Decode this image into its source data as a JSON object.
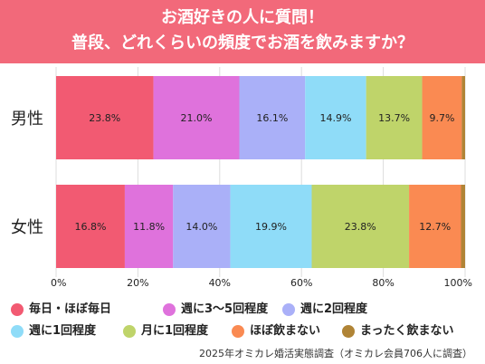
{
  "header": {
    "title_line1": "お酒好きの人に質問！",
    "title_line2": "普段、どれくらいの頻度でお酒を飲みますか？"
  },
  "colors": {
    "header_bg": "#f2697a",
    "series": [
      "#f25a72",
      "#df72dc",
      "#aab0f8",
      "#8fdcf8",
      "#bfd46a",
      "#fa8a52",
      "#b08436"
    ]
  },
  "chart_data": {
    "type": "bar",
    "orientation": "horizontal",
    "stacked": true,
    "categories": [
      "男性",
      "女性"
    ],
    "xlim": [
      0,
      100
    ],
    "x_ticks": [
      "0%",
      "20%",
      "40%",
      "60%",
      "80%",
      "100%"
    ],
    "series": [
      {
        "name": "毎日・ほぼ毎日",
        "values": [
          23.8,
          16.8
        ],
        "labels": [
          "23.8%",
          "16.8%"
        ]
      },
      {
        "name": "週に3〜5回程度",
        "values": [
          21.0,
          11.8
        ],
        "labels": [
          "21.0%",
          "11.8%"
        ]
      },
      {
        "name": "週に2回程度",
        "values": [
          16.1,
          14.0
        ],
        "labels": [
          "16.1%",
          "14.0%"
        ]
      },
      {
        "name": "週に1回程度",
        "values": [
          14.9,
          19.9
        ],
        "labels": [
          "14.9%",
          "19.9%"
        ]
      },
      {
        "name": "月に1回程度",
        "values": [
          13.7,
          23.8
        ],
        "labels": [
          "13.7%",
          "23.8%"
        ]
      },
      {
        "name": "ほぼ飲まない",
        "values": [
          9.7,
          12.7
        ],
        "labels": [
          "9.7%",
          "12.7%"
        ]
      },
      {
        "name": "まったく飲まない",
        "values": [
          0.8,
          1.0
        ],
        "labels": [
          "",
          ""
        ]
      }
    ],
    "legend_position": "bottom"
  },
  "source": "2025年オミカレ婚活実態調査（オミカレ会員706人に調査）"
}
